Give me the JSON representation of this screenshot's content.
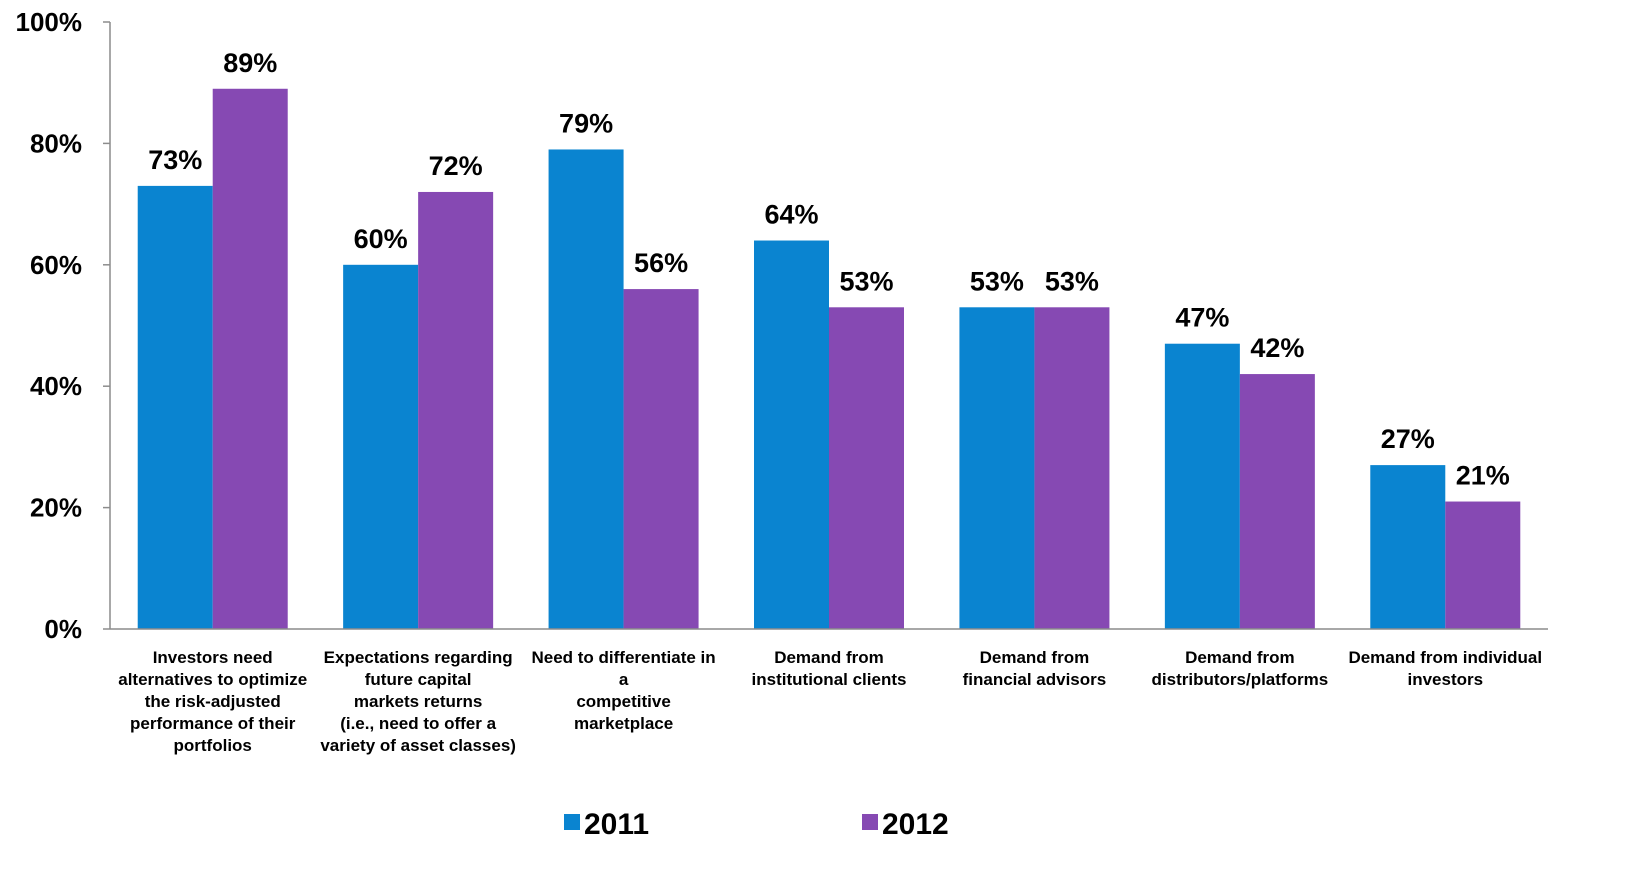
{
  "chart_data": {
    "type": "bar",
    "title": "",
    "xlabel": "",
    "ylabel": "",
    "ylim": [
      0,
      100
    ],
    "yticks": [
      "0%",
      "20%",
      "40%",
      "60%",
      "80%",
      "100%"
    ],
    "ytick_values": [
      0,
      20,
      40,
      60,
      80,
      100
    ],
    "grid": false,
    "legend_position": "bottom",
    "categories": [
      [
        "Investors need",
        "alternatives to optimize",
        "the risk-adjusted",
        "performance of their",
        "portfolios"
      ],
      [
        "Expectations regarding",
        "future capital",
        "markets returns",
        "(i.e., need to offer a",
        "variety of asset classes)"
      ],
      [
        "Need to differentiate in",
        "a",
        "competitive",
        "marketplace"
      ],
      [
        "Demand from",
        "institutional clients"
      ],
      [
        "Demand from",
        "financial advisors"
      ],
      [
        "Demand from",
        "distributors/platforms"
      ],
      [
        "Demand from individual",
        "investors"
      ]
    ],
    "series": [
      {
        "name": "2011",
        "color": "#0a84d0",
        "values": [
          73,
          60,
          79,
          64,
          53,
          47,
          27
        ],
        "labels": [
          "73%",
          "60%",
          "79%",
          "64%",
          "53%",
          "47%",
          "27%"
        ]
      },
      {
        "name": "2012",
        "color": "#8649b3",
        "values": [
          89,
          72,
          56,
          53,
          53,
          42,
          21
        ],
        "labels": [
          "89%",
          "72%",
          "56%",
          "53%",
          "53%",
          "42%",
          "21%"
        ]
      }
    ]
  }
}
